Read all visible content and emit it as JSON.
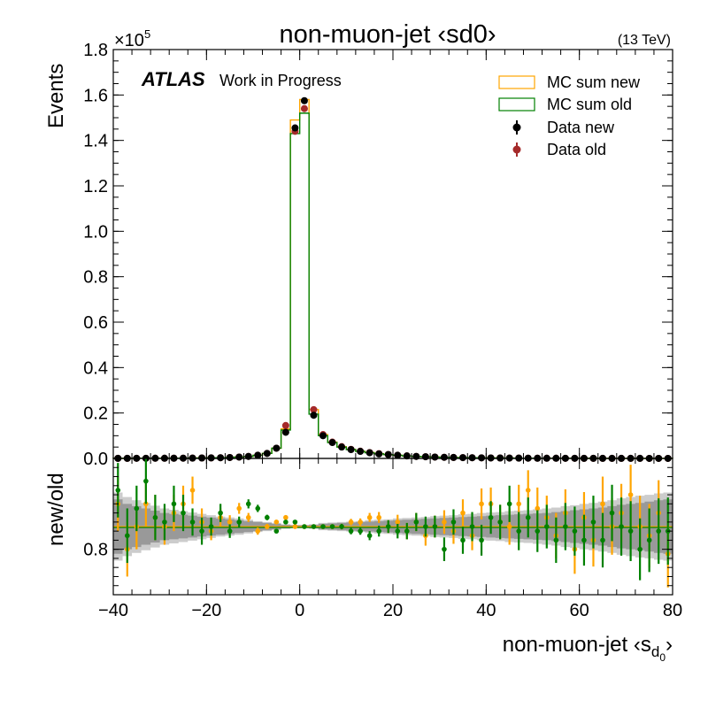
{
  "chart_data": {
    "type": "line",
    "title": "non-muon-jet ‹sd0›",
    "energy_label": "(13 TeV)",
    "atlas_label": "ATLAS",
    "atlas_sublabel": "Work in Progress",
    "xlabel_main": "non-muon-jet ‹s",
    "xlabel_sub": "d",
    "xlabel_subsub": "0",
    "xlabel_close": "›",
    "ylabel": "Events",
    "ratio_ylabel": "new/old",
    "y_multiplier_prefix": "×10",
    "y_multiplier_exp": "5",
    "xlim": [
      -40,
      80
    ],
    "ylim": [
      0,
      1.8
    ],
    "ratio_ylim": [
      0.7,
      1.0
    ],
    "x_ticks": [
      -40,
      -20,
      0,
      20,
      40,
      60,
      80
    ],
    "x_tick_labels": [
      "−40",
      "−20",
      "0",
      "20",
      "40",
      "60",
      "80"
    ],
    "y_ticks": [
      0,
      0.2,
      0.4,
      0.6,
      0.8,
      1.0,
      1.2,
      1.4,
      1.6,
      1.8
    ],
    "y_tick_labels": [
      "0.0",
      "0.2",
      "0.4",
      "0.6",
      "0.8",
      "1.0",
      "1.2",
      "1.4",
      "1.6",
      "1.8"
    ],
    "ratio_y_ticks": [
      0.8
    ],
    "ratio_y_tick_labels": [
      "0.8"
    ],
    "legend": {
      "position": "top-right",
      "entries": [
        "MC sum new",
        "MC sum old",
        "Data new",
        "Data old"
      ]
    },
    "colors": {
      "mc_new": "#ffa500",
      "mc_old": "#008000",
      "data_new": "#000000",
      "data_old": "#a52a2a",
      "band_dark": "#999999",
      "band_light": "#cccccc"
    },
    "bin_edges": [
      -40,
      -38,
      -36,
      -34,
      -32,
      -30,
      -28,
      -26,
      -24,
      -22,
      -20,
      -18,
      -16,
      -14,
      -12,
      -10,
      -8,
      -6,
      -4,
      -2,
      0,
      2,
      4,
      6,
      8,
      10,
      12,
      14,
      16,
      18,
      20,
      22,
      24,
      26,
      28,
      30,
      32,
      34,
      36,
      38,
      40,
      42,
      44,
      46,
      48,
      50,
      52,
      54,
      56,
      58,
      60,
      62,
      64,
      66,
      68,
      70,
      72,
      74,
      76,
      78,
      80
    ],
    "bin_centers": [
      -39,
      -37,
      -35,
      -33,
      -31,
      -29,
      -27,
      -25,
      -23,
      -21,
      -19,
      -17,
      -15,
      -13,
      -11,
      -9,
      -7,
      -5,
      -3,
      -1,
      1,
      3,
      5,
      7,
      9,
      11,
      13,
      15,
      17,
      19,
      21,
      23,
      25,
      27,
      29,
      31,
      33,
      35,
      37,
      39,
      41,
      43,
      45,
      47,
      49,
      51,
      53,
      55,
      57,
      59,
      61,
      63,
      65,
      67,
      69,
      71,
      73,
      75,
      77,
      79
    ],
    "series": [
      {
        "name": "MC sum new",
        "style": "step",
        "values": [
          0.0005,
          0.0005,
          0.0006,
          0.0007,
          0.0008,
          0.0009,
          0.001,
          0.0012,
          0.0015,
          0.002,
          0.0025,
          0.003,
          0.004,
          0.006,
          0.009,
          0.014,
          0.022,
          0.045,
          0.13,
          1.49,
          1.58,
          0.215,
          0.105,
          0.072,
          0.052,
          0.04,
          0.032,
          0.026,
          0.021,
          0.017,
          0.014,
          0.011,
          0.009,
          0.0075,
          0.006,
          0.005,
          0.0042,
          0.0036,
          0.003,
          0.0026,
          0.0022,
          0.0019,
          0.0016,
          0.0014,
          0.0012,
          0.001,
          0.0009,
          0.0008,
          0.0007,
          0.0006,
          0.0005,
          0.0005,
          0.0004,
          0.0004,
          0.0003,
          0.0003,
          0.0003,
          0.0002,
          0.0002,
          0.0002
        ]
      },
      {
        "name": "MC sum old",
        "style": "step",
        "values": [
          0.0005,
          0.0005,
          0.0006,
          0.0007,
          0.0008,
          0.0009,
          0.001,
          0.0012,
          0.0015,
          0.002,
          0.0025,
          0.003,
          0.004,
          0.006,
          0.009,
          0.014,
          0.022,
          0.045,
          0.125,
          1.43,
          1.52,
          0.195,
          0.1,
          0.07,
          0.05,
          0.039,
          0.031,
          0.025,
          0.02,
          0.017,
          0.014,
          0.011,
          0.009,
          0.0075,
          0.006,
          0.005,
          0.0042,
          0.0036,
          0.003,
          0.0026,
          0.0022,
          0.0019,
          0.0016,
          0.0014,
          0.0012,
          0.001,
          0.0009,
          0.0008,
          0.0007,
          0.0006,
          0.0005,
          0.0005,
          0.0004,
          0.0004,
          0.0003,
          0.0003,
          0.0003,
          0.0002,
          0.0002,
          0.0002
        ]
      },
      {
        "name": "Data new",
        "style": "points",
        "values": [
          0.0005,
          0.0005,
          0.0006,
          0.0007,
          0.0008,
          0.0009,
          0.001,
          0.0012,
          0.0015,
          0.002,
          0.0025,
          0.003,
          0.004,
          0.006,
          0.009,
          0.014,
          0.022,
          0.045,
          0.115,
          1.455,
          1.575,
          0.19,
          0.1,
          0.07,
          0.05,
          0.039,
          0.031,
          0.025,
          0.02,
          0.017,
          0.014,
          0.011,
          0.009,
          0.0075,
          0.006,
          0.005,
          0.0042,
          0.0036,
          0.003,
          0.0026,
          0.0022,
          0.0019,
          0.0016,
          0.0014,
          0.0012,
          0.001,
          0.0009,
          0.0008,
          0.0007,
          0.0006,
          0.0005,
          0.0005,
          0.0004,
          0.0004,
          0.0003,
          0.0003,
          0.0003,
          0.0002,
          0.0002,
          0.0002
        ]
      },
      {
        "name": "Data old",
        "style": "points",
        "values": [
          0.0005,
          0.0005,
          0.0006,
          0.0007,
          0.0008,
          0.0009,
          0.001,
          0.0012,
          0.0015,
          0.002,
          0.0025,
          0.003,
          0.004,
          0.006,
          0.009,
          0.014,
          0.022,
          0.045,
          0.145,
          1.44,
          1.54,
          0.215,
          0.105,
          0.072,
          0.052,
          0.04,
          0.032,
          0.026,
          0.021,
          0.017,
          0.014,
          0.011,
          0.009,
          0.0075,
          0.006,
          0.005,
          0.0042,
          0.0036,
          0.003,
          0.0026,
          0.0022,
          0.0019,
          0.0016,
          0.0014,
          0.0012,
          0.001,
          0.0009,
          0.0008,
          0.0007,
          0.0006,
          0.0005,
          0.0005,
          0.0004,
          0.0004,
          0.0003,
          0.0003,
          0.0003,
          0.0002,
          0.0002,
          0.0002
        ]
      }
    ],
    "ratio_reference": 0.85,
    "ratio_band_dark_half_width": [
      0.06,
      0.05,
      0.045,
      0.04,
      0.035,
      0.03,
      0.028,
      0.026,
      0.024,
      0.022,
      0.02,
      0.018,
      0.016,
      0.014,
      0.012,
      0.01,
      0.008,
      0.006,
      0.004,
      0.003,
      0.003,
      0.004,
      0.006,
      0.007,
      0.008,
      0.009,
      0.01,
      0.011,
      0.012,
      0.013,
      0.014,
      0.015,
      0.016,
      0.017,
      0.018,
      0.019,
      0.02,
      0.021,
      0.022,
      0.023,
      0.024,
      0.025,
      0.026,
      0.027,
      0.028,
      0.029,
      0.03,
      0.032,
      0.034,
      0.036,
      0.038,
      0.04,
      0.042,
      0.045,
      0.048,
      0.05,
      0.052,
      0.055,
      0.058,
      0.06
    ],
    "ratio_band_light_half_width": [
      0.075,
      0.065,
      0.058,
      0.052,
      0.046,
      0.04,
      0.037,
      0.034,
      0.031,
      0.028,
      0.025,
      0.022,
      0.02,
      0.018,
      0.015,
      0.012,
      0.01,
      0.008,
      0.005,
      0.004,
      0.004,
      0.005,
      0.008,
      0.009,
      0.01,
      0.011,
      0.012,
      0.014,
      0.015,
      0.016,
      0.018,
      0.019,
      0.02,
      0.021,
      0.023,
      0.024,
      0.025,
      0.027,
      0.028,
      0.03,
      0.031,
      0.032,
      0.034,
      0.035,
      0.036,
      0.038,
      0.04,
      0.042,
      0.045,
      0.047,
      0.05,
      0.052,
      0.055,
      0.058,
      0.062,
      0.065,
      0.068,
      0.07,
      0.073,
      0.075
    ],
    "ratio_series": [
      {
        "name": "MC sum new",
        "values": [
          0.9,
          0.8,
          0.85,
          0.9,
          0.87,
          0.85,
          0.88,
          0.9,
          0.93,
          0.86,
          0.84,
          0.87,
          0.86,
          0.89,
          0.87,
          0.84,
          0.85,
          0.86,
          0.87,
          0.85,
          0.85,
          0.85,
          0.85,
          0.85,
          0.85,
          0.86,
          0.86,
          0.87,
          0.87,
          0.85,
          0.86,
          0.84,
          0.86,
          0.83,
          0.85,
          0.86,
          0.84,
          0.88,
          0.83,
          0.9,
          0.9,
          0.86,
          0.85,
          0.9,
          0.93,
          0.89,
          0.87,
          0.83,
          0.88,
          0.8,
          0.87,
          0.82,
          0.9,
          0.85,
          0.88,
          0.92,
          0.85,
          0.83,
          0.88,
          0.79
        ],
        "errors": [
          0.06,
          0.06,
          0.05,
          0.05,
          0.05,
          0.04,
          0.04,
          0.04,
          0.03,
          0.03,
          0.02,
          0.02,
          0.015,
          0.012,
          0.01,
          0.008,
          0.006,
          0.005,
          0.003,
          0.002,
          0.002,
          0.003,
          0.004,
          0.005,
          0.006,
          0.007,
          0.008,
          0.01,
          0.012,
          0.014,
          0.016,
          0.018,
          0.02,
          0.022,
          0.024,
          0.026,
          0.028,
          0.03,
          0.032,
          0.034,
          0.036,
          0.038,
          0.04,
          0.042,
          0.044,
          0.046,
          0.048,
          0.05,
          0.052,
          0.054,
          0.056,
          0.058,
          0.06,
          0.062,
          0.064,
          0.066,
          0.068,
          0.07,
          0.072,
          0.074
        ]
      },
      {
        "name": "MC sum old",
        "values": [
          0.93,
          0.83,
          0.89,
          0.95,
          0.87,
          0.86,
          0.9,
          0.88,
          0.86,
          0.84,
          0.85,
          0.88,
          0.84,
          0.86,
          0.9,
          0.89,
          0.87,
          0.84,
          0.86,
          0.86,
          0.85,
          0.85,
          0.85,
          0.85,
          0.85,
          0.84,
          0.84,
          0.83,
          0.84,
          0.85,
          0.84,
          0.84,
          0.86,
          0.85,
          0.85,
          0.8,
          0.86,
          0.82,
          0.85,
          0.82,
          0.87,
          0.86,
          0.9,
          0.84,
          0.87,
          0.84,
          0.85,
          0.82,
          0.85,
          0.84,
          0.82,
          0.86,
          0.82,
          0.88,
          0.85,
          0.84,
          0.8,
          0.82,
          0.84,
          0.84
        ],
        "errors": [
          0.06,
          0.06,
          0.05,
          0.05,
          0.05,
          0.04,
          0.04,
          0.04,
          0.03,
          0.03,
          0.02,
          0.02,
          0.015,
          0.012,
          0.01,
          0.008,
          0.006,
          0.005,
          0.003,
          0.002,
          0.002,
          0.003,
          0.004,
          0.005,
          0.006,
          0.007,
          0.008,
          0.01,
          0.012,
          0.014,
          0.016,
          0.018,
          0.02,
          0.022,
          0.024,
          0.026,
          0.028,
          0.03,
          0.032,
          0.034,
          0.036,
          0.038,
          0.04,
          0.042,
          0.044,
          0.046,
          0.048,
          0.05,
          0.052,
          0.054,
          0.056,
          0.058,
          0.06,
          0.062,
          0.064,
          0.066,
          0.068,
          0.07,
          0.072,
          0.074
        ]
      }
    ]
  }
}
